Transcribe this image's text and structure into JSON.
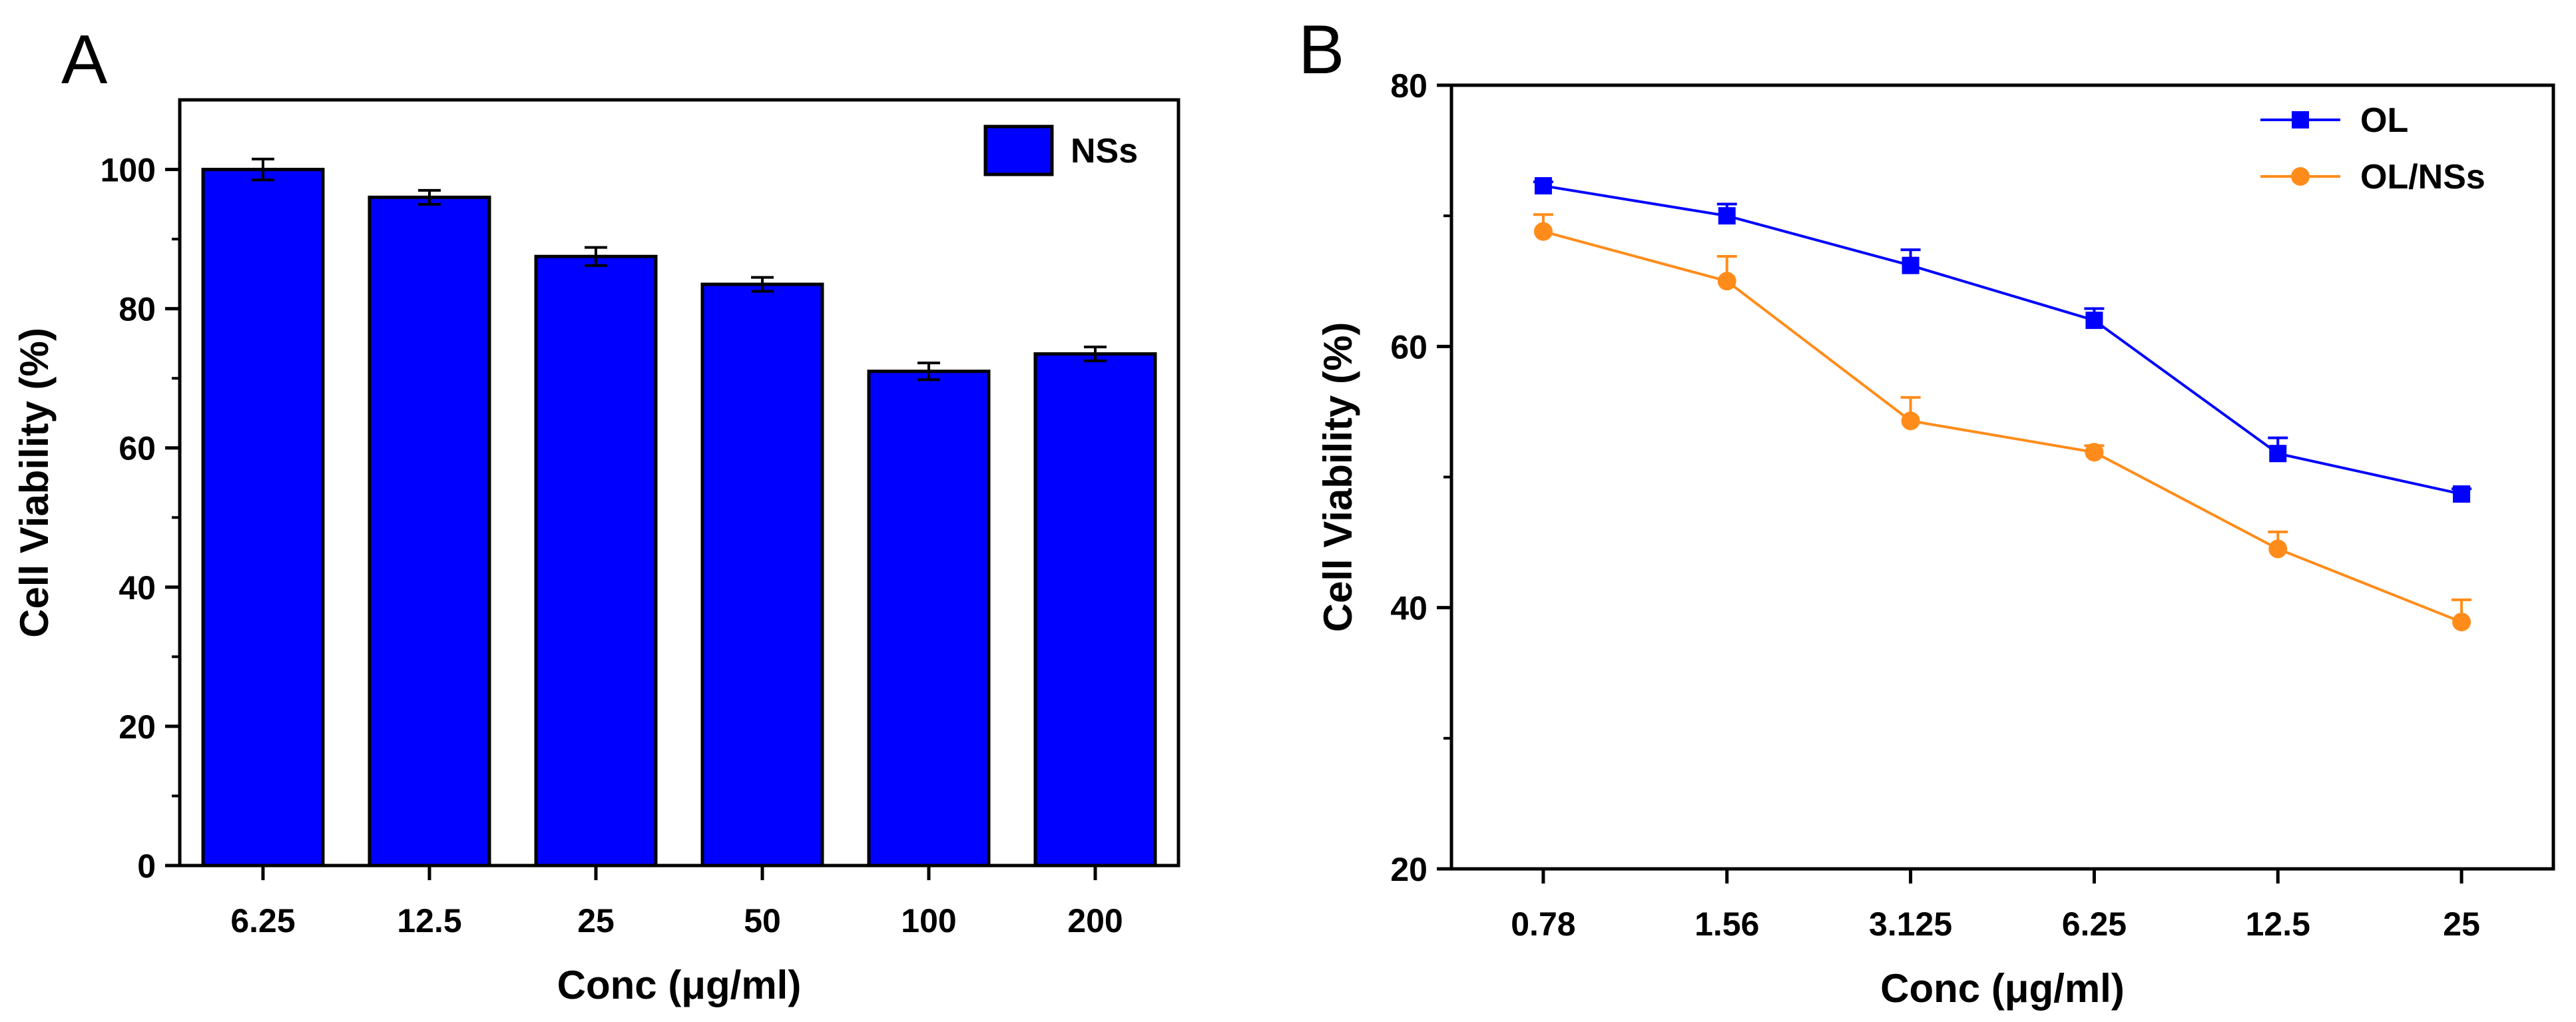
{
  "chart_data": [
    {
      "panel_label": "A",
      "type": "bar",
      "categories": [
        "6.25",
        "12.5",
        "25",
        "50",
        "100",
        "200"
      ],
      "series": [
        {
          "name": "NSs",
          "values": [
            100,
            96,
            87.5,
            83.5,
            71,
            73.5
          ],
          "errors": [
            1.5,
            1.0,
            1.3,
            1.0,
            1.2,
            1.0
          ]
        }
      ],
      "xlabel": "Conc (μg/ml)",
      "ylabel": "Cell Viability (%)",
      "ylim": [
        0,
        110
      ],
      "yticks": [
        0,
        20,
        40,
        60,
        80,
        100
      ],
      "grid": false,
      "legend_position": "top-right",
      "colors": {
        "bar": "#0000ff",
        "bar_edge": "#000000"
      }
    },
    {
      "panel_label": "B",
      "type": "line",
      "categories": [
        "0.78",
        "1.56",
        "3.125",
        "6.25",
        "12.5",
        "25"
      ],
      "series": [
        {
          "name": "OL",
          "values": [
            72.3,
            70,
            66.2,
            62,
            51.8,
            48.7
          ],
          "errors": [
            0.3,
            0.9,
            1.2,
            0.9,
            1.2,
            0.4
          ],
          "color": "#0000ff",
          "marker": "square"
        },
        {
          "name": "OL/NSs",
          "values": [
            68.8,
            65,
            54.3,
            51.9,
            44.5,
            38.9
          ],
          "errors": [
            1.3,
            1.9,
            1.8,
            0.5,
            1.3,
            1.7
          ],
          "color": "#ff8c1a",
          "marker": "circle"
        }
      ],
      "xlabel": "Conc (μg/ml)",
      "ylabel": "Cell Viability (%)",
      "ylim": [
        20,
        80
      ],
      "yticks": [
        20,
        40,
        60,
        80
      ],
      "grid": false,
      "legend_position": "top-right"
    }
  ]
}
